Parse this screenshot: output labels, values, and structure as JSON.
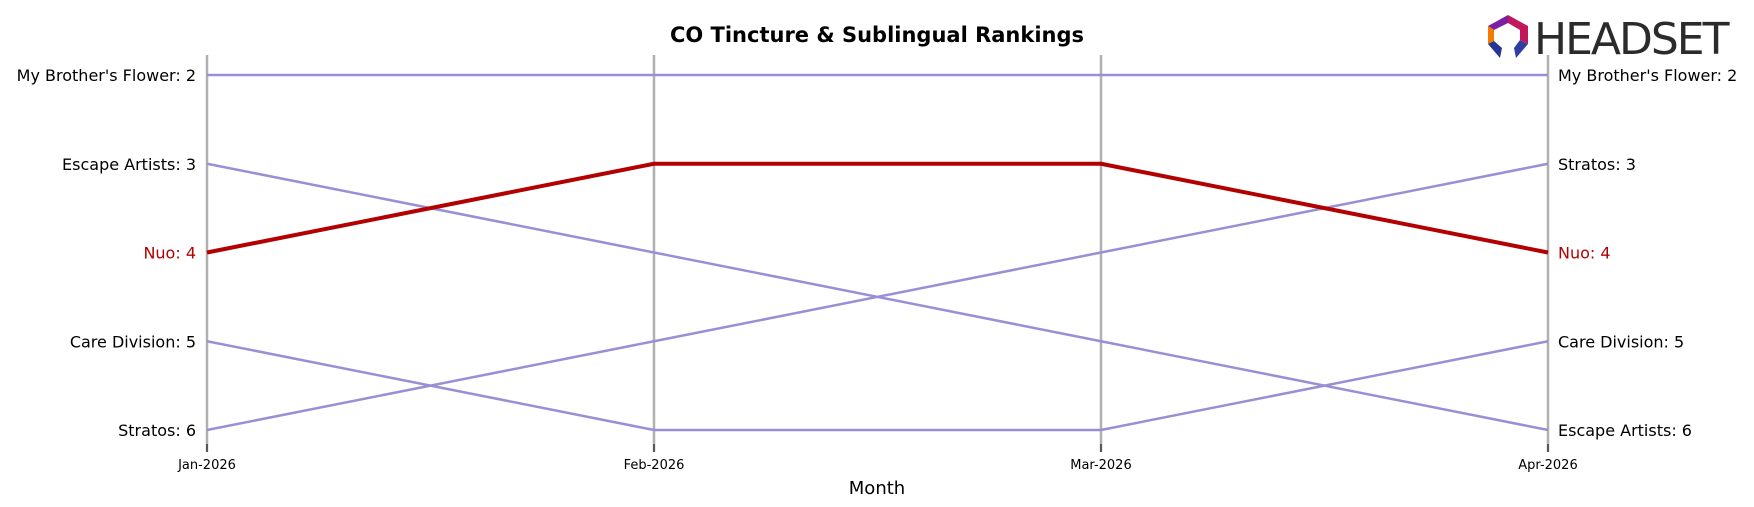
{
  "logo": {
    "text": "HEADSET"
  },
  "chart_data": {
    "type": "line",
    "title": "CO Tincture & Sublingual Rankings",
    "xlabel": "Month",
    "ylabel": "",
    "categories": [
      "Jan-2026",
      "Feb-2026",
      "Mar-2026",
      "Apr-2026"
    ],
    "ylim": [
      2,
      6
    ],
    "y_inverted": true,
    "grid": "vertical",
    "colors": {
      "default": "#9a8fd6",
      "highlight": "#b30000",
      "gridline": "#b0b0b0"
    },
    "highlight_series": "Nuo",
    "series": [
      {
        "name": "My Brother's Flower",
        "values": [
          2,
          2,
          2,
          2
        ]
      },
      {
        "name": "Escape Artists",
        "values": [
          3,
          4,
          5,
          6
        ]
      },
      {
        "name": "Nuo",
        "values": [
          4,
          3,
          3,
          4
        ]
      },
      {
        "name": "Care Division",
        "values": [
          5,
          6,
          6,
          5
        ]
      },
      {
        "name": "Stratos",
        "values": [
          6,
          5,
          4,
          3
        ]
      }
    ],
    "left_labels": [
      {
        "text": "My Brother's Flower: 2",
        "rank": 2,
        "series": "My Brother's Flower"
      },
      {
        "text": "Escape Artists: 3",
        "rank": 3,
        "series": "Escape Artists"
      },
      {
        "text": "Nuo: 4",
        "rank": 4,
        "series": "Nuo"
      },
      {
        "text": "Care Division: 5",
        "rank": 5,
        "series": "Care Division"
      },
      {
        "text": "Stratos: 6",
        "rank": 6,
        "series": "Stratos"
      }
    ],
    "right_labels": [
      {
        "text": "My Brother's Flower: 2",
        "rank": 2,
        "series": "My Brother's Flower"
      },
      {
        "text": "Stratos: 3",
        "rank": 3,
        "series": "Stratos"
      },
      {
        "text": "Nuo: 4",
        "rank": 4,
        "series": "Nuo"
      },
      {
        "text": "Care Division: 5",
        "rank": 5,
        "series": "Care Division"
      },
      {
        "text": "Escape Artists: 6",
        "rank": 6,
        "series": "Escape Artists"
      }
    ]
  }
}
